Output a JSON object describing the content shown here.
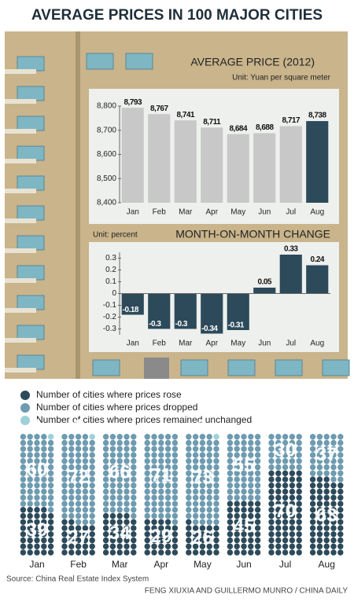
{
  "title": "AVERAGE PRICES IN 100 MAJOR CITIES",
  "source": "Source: China Real Estate Index System",
  "credit": "FENG XIUXIA AND GUILLERMO MUNRO / CHINA DAILY",
  "chart_data": [
    {
      "type": "bar",
      "title": "AVERAGE PRICE (2012)",
      "subtitle": "Unit: Yuan per square meter",
      "categories": [
        "Jan",
        "Feb",
        "Mar",
        "Apr",
        "May",
        "Jun",
        "Jul",
        "Aug"
      ],
      "values": [
        8793,
        8767,
        8741,
        8711,
        8684,
        8688,
        8717,
        8738
      ],
      "value_labels": [
        "8,793",
        "8,767",
        "8,741",
        "8,711",
        "8,684",
        "8,688",
        "8,717",
        "8,738"
      ],
      "colors": [
        "#c8c8c8",
        "#c8c8c8",
        "#c8c8c8",
        "#c8c8c8",
        "#c8c8c8",
        "#c8c8c8",
        "#c8c8c8",
        "#2c4a5a"
      ],
      "ylim": [
        8400,
        8800
      ],
      "yticks": [
        {
          "value": 8400,
          "label": "8,400"
        },
        {
          "value": 8500,
          "label": "8,500"
        },
        {
          "value": 8600,
          "label": "8,600"
        },
        {
          "value": 8700,
          "label": "8,700"
        },
        {
          "value": 8800,
          "label": "8,800"
        }
      ]
    },
    {
      "type": "bar",
      "title": "MONTH-ON-MONTH CHANGE",
      "subtitle": "Unit: percent",
      "categories": [
        "Jan",
        "Feb",
        "Mar",
        "Apr",
        "May",
        "Jun",
        "Jul",
        "Aug"
      ],
      "values": [
        -0.18,
        -0.3,
        -0.3,
        -0.34,
        -0.31,
        0.05,
        0.33,
        0.24
      ],
      "color": "#2c4a5a",
      "ylim": [
        -0.35,
        0.35
      ],
      "yticks": [
        0.3,
        0.2,
        0.1,
        0,
        -0.1,
        -0.2,
        -0.3
      ]
    },
    {
      "type": "dot",
      "categories": [
        "Jan",
        "Feb",
        "Mar",
        "Apr",
        "May",
        "Jun",
        "Jul",
        "Aug"
      ],
      "series": [
        {
          "name": "Number of cities where prices rose",
          "color": "#2c4a5a",
          "values": [
            39,
            27,
            34,
            29,
            26,
            45,
            70,
            63
          ]
        },
        {
          "name": "Number of cities where prices dropped",
          "color": "#6e9bb0",
          "values": [
            60,
            72,
            66,
            71,
            73,
            55,
            30,
            37
          ]
        },
        {
          "name": "Number of cities where prices remained unchanged",
          "color": "#9fd0d8",
          "values": [
            1,
            1,
            0,
            0,
            1,
            0,
            0,
            0
          ]
        }
      ]
    }
  ]
}
